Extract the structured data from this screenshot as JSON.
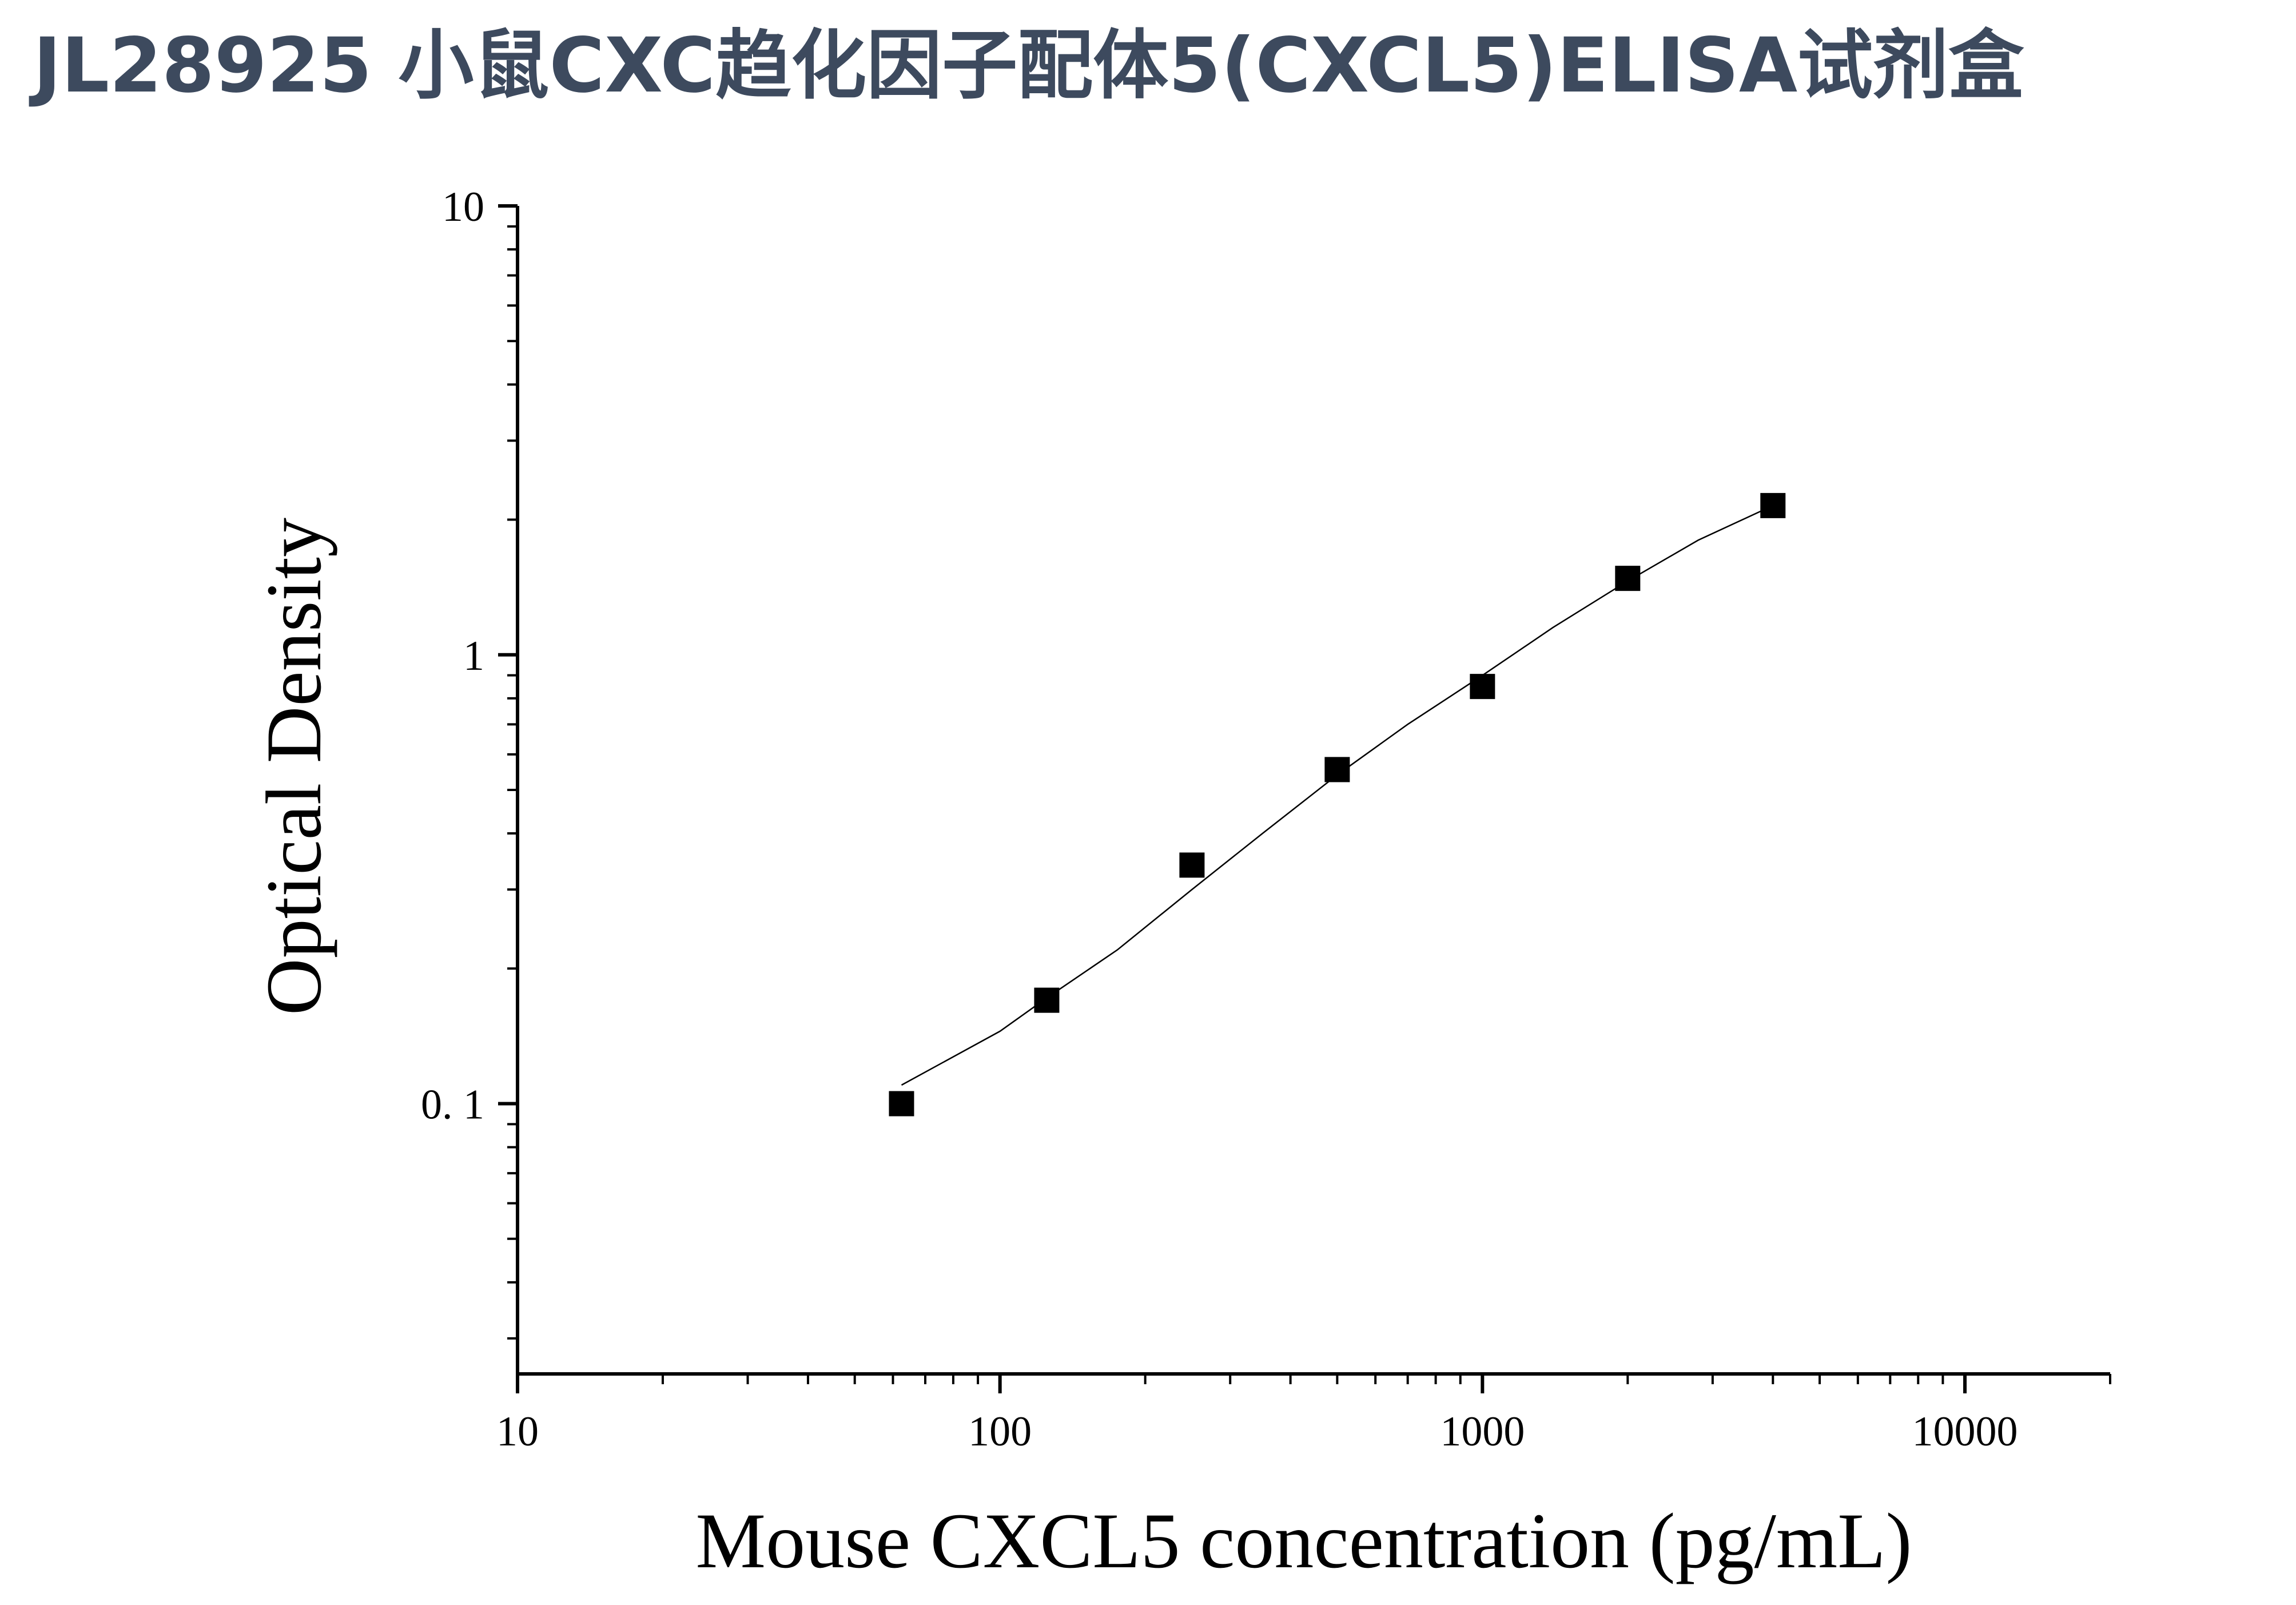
{
  "page": {
    "title": "JL28925 小鼠CXC趋化因子配体5(CXCL5)ELISA试剂盒"
  },
  "chart_data": {
    "type": "scatter",
    "title": "",
    "xlabel": "Mouse CXCL5 concentration (pg/mL)",
    "ylabel": "Optical Density",
    "x_scale": "log",
    "y_scale": "log",
    "xlim": [
      10,
      20000
    ],
    "ylim": [
      0.025,
      10
    ],
    "x_ticks": [
      {
        "value": 10,
        "label": "10"
      },
      {
        "value": 100,
        "label": "100"
      },
      {
        "value": 1000,
        "label": "1000"
      },
      {
        "value": 10000,
        "label": "10000"
      }
    ],
    "y_ticks": [
      {
        "value": 0.1,
        "label": "0. 1"
      },
      {
        "value": 1,
        "label": "1"
      },
      {
        "value": 10,
        "label": "10"
      }
    ],
    "grid": false,
    "legend": "none",
    "marker": "square",
    "colors": {
      "points": "#000000",
      "curve": "#000000",
      "axes": "#000000",
      "title": "#3d4a5e"
    },
    "series": [
      {
        "name": "",
        "x": [
          62.5,
          125,
          250,
          500,
          1000,
          2000,
          4000
        ],
        "y": [
          0.1,
          0.17,
          0.34,
          0.555,
          0.85,
          1.48,
          2.15
        ]
      }
    ],
    "fit_curve": {
      "x": [
        62.5,
        100,
        125,
        175,
        250,
        350,
        500,
        700,
        1000,
        1400,
        2000,
        2800,
        4000
      ],
      "y": [
        0.11,
        0.145,
        0.172,
        0.22,
        0.3,
        0.4,
        0.54,
        0.7,
        0.9,
        1.15,
        1.46,
        1.8,
        2.15
      ]
    }
  }
}
